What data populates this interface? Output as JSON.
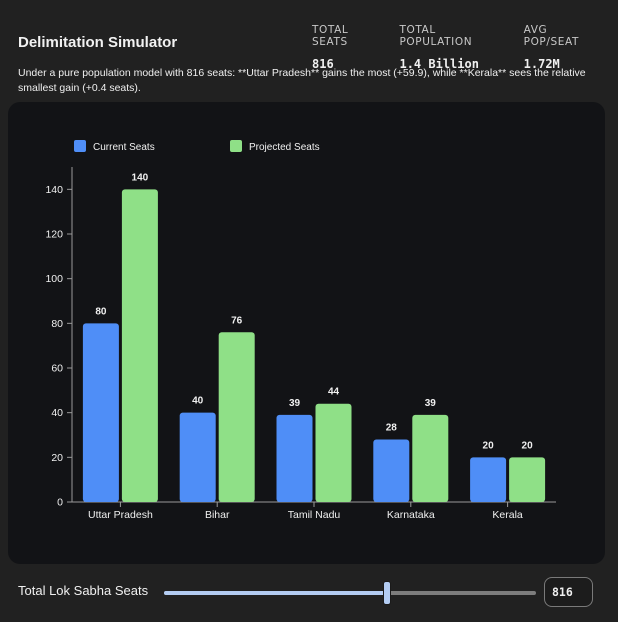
{
  "app": {
    "title": "Delimitation Simulator"
  },
  "stats": [
    {
      "label": "TOTAL SEATS",
      "value": "816"
    },
    {
      "label": "TOTAL POPULATION",
      "value": "1.4 Billion"
    },
    {
      "label": "AVG POP/SEAT",
      "value": "1.72M"
    }
  ],
  "summary": "Under a pure population model with 816 seats: **Uttar Pradesh** gains the most (+59.9), while **Kerala** sees the relative smallest gain (+0.4 seats).",
  "colors": {
    "current": "#4f8ef7",
    "projected": "#8fe087",
    "axis": "#9a9a9a",
    "text": "#f0f0f0"
  },
  "chart_data": {
    "type": "bar",
    "categories": [
      "Uttar Pradesh",
      "Bihar",
      "Tamil Nadu",
      "Karnataka",
      "Kerala"
    ],
    "series": [
      {
        "name": "Current Seats",
        "values": [
          80,
          40,
          39,
          28,
          20
        ]
      },
      {
        "name": "Projected Seats",
        "values": [
          140,
          76,
          44,
          39,
          20
        ]
      }
    ],
    "ylim": [
      0,
      150
    ],
    "yticks": [
      0,
      20,
      40,
      60,
      80,
      100,
      120,
      140
    ],
    "legend": "top-left",
    "title": "",
    "xlabel": "",
    "ylabel": ""
  },
  "control": {
    "label": "Total Lok Sabha Seats",
    "value": "816",
    "slider_position": 0.6
  }
}
